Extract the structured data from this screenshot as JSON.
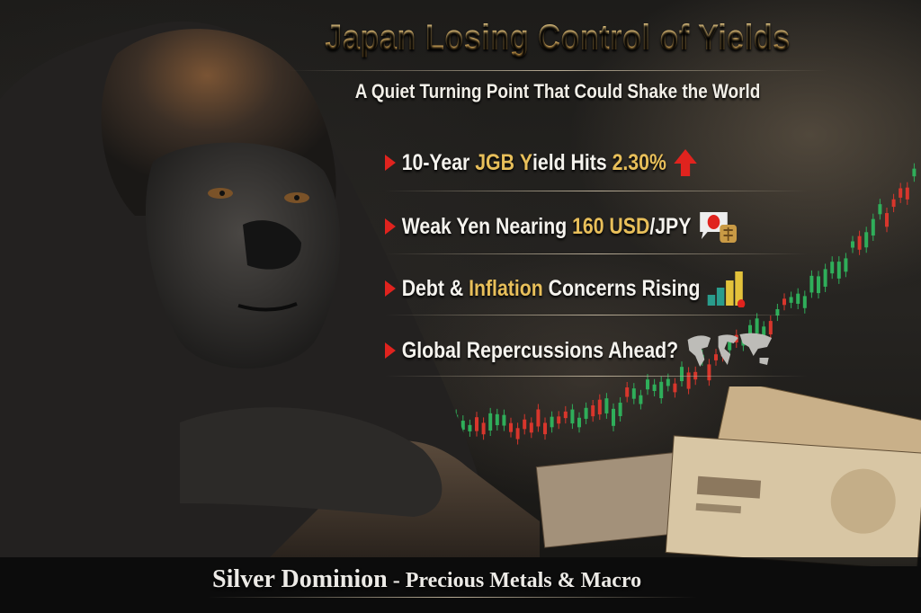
{
  "title": "Japan Losing Control of Yields",
  "subtitle": "A Quiet Turning Point That Could Shake the World",
  "bullets": [
    {
      "parts": [
        "10-Year ",
        "JGB",
        " ",
        "Y",
        "ield Hits ",
        "2.30%",
        ""
      ],
      "icon": "red-up-arrow-icon"
    },
    {
      "parts": [
        "Weak Yen Nearing ",
        "160 USD",
        "/JPY"
      ],
      "icon": "yen-chat-bubble-icon"
    },
    {
      "parts": [
        "Debt & ",
        "Inflation",
        " Concerns Rising"
      ],
      "icon": "rising-bar-chart-icon"
    },
    {
      "parts": [
        "Global Repercussions Ahead?"
      ],
      "icon": "world-map-icon"
    }
  ],
  "footer": {
    "brand": "Silver Dominion",
    "tagline": " - Precious Metals & Macro"
  },
  "colors": {
    "title_gold": "#e7c074",
    "highlight": "#e8bf5a",
    "chevron_red": "#e0231e",
    "candle_green": "#2fae5a",
    "candle_red": "#d8362c"
  }
}
